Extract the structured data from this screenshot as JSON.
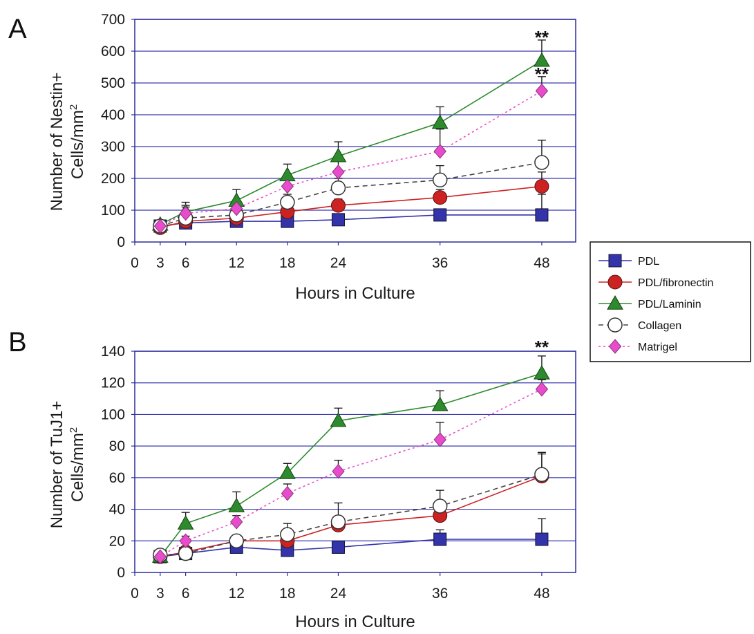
{
  "chart_data": [
    {
      "type": "line",
      "panel_label": "A",
      "xlabel": "Hours in Culture",
      "ylabel_line1": "Number of Nestin+",
      "ylabel_line2": "Cells/mm",
      "ylabel_sup": "2",
      "ylim": [
        0,
        700
      ],
      "yticks": [
        0,
        100,
        200,
        300,
        400,
        500,
        600,
        700
      ],
      "xlim": [
        0,
        52
      ],
      "xticks": [
        0,
        3,
        6,
        12,
        18,
        24,
        36,
        48
      ],
      "grid": true,
      "annotations": [
        {
          "text": "**",
          "x": 48,
          "y": 650
        },
        {
          "text": "**",
          "x": 48,
          "y": 535
        }
      ],
      "series": [
        {
          "name": "PDL",
          "color": "#3333aa",
          "marker": "square",
          "line": "solid",
          "x": [
            3,
            6,
            12,
            18,
            24,
            36,
            48
          ],
          "y": [
            50,
            60,
            65,
            65,
            70,
            85,
            85
          ],
          "err": [
            10,
            10,
            10,
            10,
            10,
            10,
            65
          ]
        },
        {
          "name": "PDL/fibronectin",
          "color": "#cc2222",
          "marker": "circle",
          "line": "solid",
          "x": [
            3,
            6,
            12,
            18,
            24,
            36,
            48
          ],
          "y": [
            45,
            65,
            75,
            95,
            115,
            140,
            175
          ],
          "err": [
            10,
            10,
            10,
            15,
            20,
            25,
            45
          ]
        },
        {
          "name": "PDL/Laminin",
          "color": "#2d8a2d",
          "marker": "triangle",
          "line": "solid",
          "x": [
            3,
            6,
            12,
            18,
            24,
            36,
            48
          ],
          "y": [
            55,
            95,
            130,
            210,
            270,
            375,
            570
          ],
          "err": [
            10,
            30,
            35,
            35,
            45,
            50,
            65
          ]
        },
        {
          "name": "Collagen",
          "color": "#444444",
          "marker": "open-circle",
          "line": "dashed",
          "x": [
            3,
            6,
            12,
            18,
            24,
            36,
            48
          ],
          "y": [
            50,
            75,
            85,
            125,
            170,
            195,
            250
          ],
          "err": [
            10,
            40,
            20,
            25,
            30,
            45,
            70
          ]
        },
        {
          "name": "Matrigel",
          "color": "#e84ccc",
          "marker": "diamond",
          "line": "dotted",
          "x": [
            3,
            6,
            12,
            18,
            24,
            36,
            48
          ],
          "y": [
            50,
            90,
            105,
            175,
            220,
            285,
            475
          ],
          "err": [
            10,
            20,
            25,
            30,
            35,
            70,
            45
          ]
        }
      ]
    },
    {
      "type": "line",
      "panel_label": "B",
      "xlabel": "Hours in Culture",
      "ylabel_line1": "Number of TuJ1+",
      "ylabel_line2": "Cells/mm",
      "ylabel_sup": "2",
      "ylim": [
        0,
        140
      ],
      "yticks": [
        0,
        20,
        40,
        60,
        80,
        100,
        120,
        140
      ],
      "xlim": [
        0,
        52
      ],
      "xticks": [
        0,
        3,
        6,
        12,
        18,
        24,
        36,
        48
      ],
      "grid": true,
      "annotations": [
        {
          "text": "**",
          "x": 48,
          "y": 144
        }
      ],
      "series": [
        {
          "name": "PDL",
          "color": "#3333aa",
          "marker": "square",
          "line": "solid",
          "x": [
            3,
            6,
            12,
            18,
            24,
            36,
            48
          ],
          "y": [
            10,
            12,
            16,
            14,
            16,
            21,
            21
          ],
          "err": [
            2,
            2,
            2,
            2,
            3,
            6,
            13
          ]
        },
        {
          "name": "PDL/fibronectin",
          "color": "#cc2222",
          "marker": "circle",
          "line": "solid",
          "x": [
            3,
            6,
            12,
            18,
            24,
            36,
            48
          ],
          "y": [
            10,
            13,
            20,
            20,
            30,
            36,
            61
          ],
          "err": [
            2,
            2,
            3,
            4,
            5,
            7,
            14
          ]
        },
        {
          "name": "PDL/Laminin",
          "color": "#2d8a2d",
          "marker": "triangle",
          "line": "solid",
          "x": [
            3,
            6,
            12,
            18,
            24,
            36,
            48
          ],
          "y": [
            10,
            31,
            42,
            63,
            96,
            106,
            126
          ],
          "err": [
            2,
            7,
            9,
            6,
            8,
            9,
            11
          ]
        },
        {
          "name": "Collagen",
          "color": "#444444",
          "marker": "open-circle",
          "line": "dashed",
          "x": [
            3,
            6,
            12,
            18,
            24,
            36,
            48
          ],
          "y": [
            11,
            12,
            20,
            24,
            32,
            42,
            62
          ],
          "err": [
            2,
            2,
            3,
            7,
            12,
            10,
            14
          ]
        },
        {
          "name": "Matrigel",
          "color": "#e84ccc",
          "marker": "diamond",
          "line": "dotted",
          "x": [
            3,
            6,
            12,
            18,
            24,
            36,
            48
          ],
          "y": [
            10,
            20,
            32,
            50,
            64,
            84,
            116
          ],
          "err": [
            2,
            3,
            4,
            6,
            7,
            11,
            6
          ]
        }
      ]
    }
  ],
  "legend": {
    "placement": "right-center",
    "items": [
      "PDL",
      "PDL/fibronectin",
      "PDL/Laminin",
      "Collagen",
      "Matrigel"
    ]
  }
}
